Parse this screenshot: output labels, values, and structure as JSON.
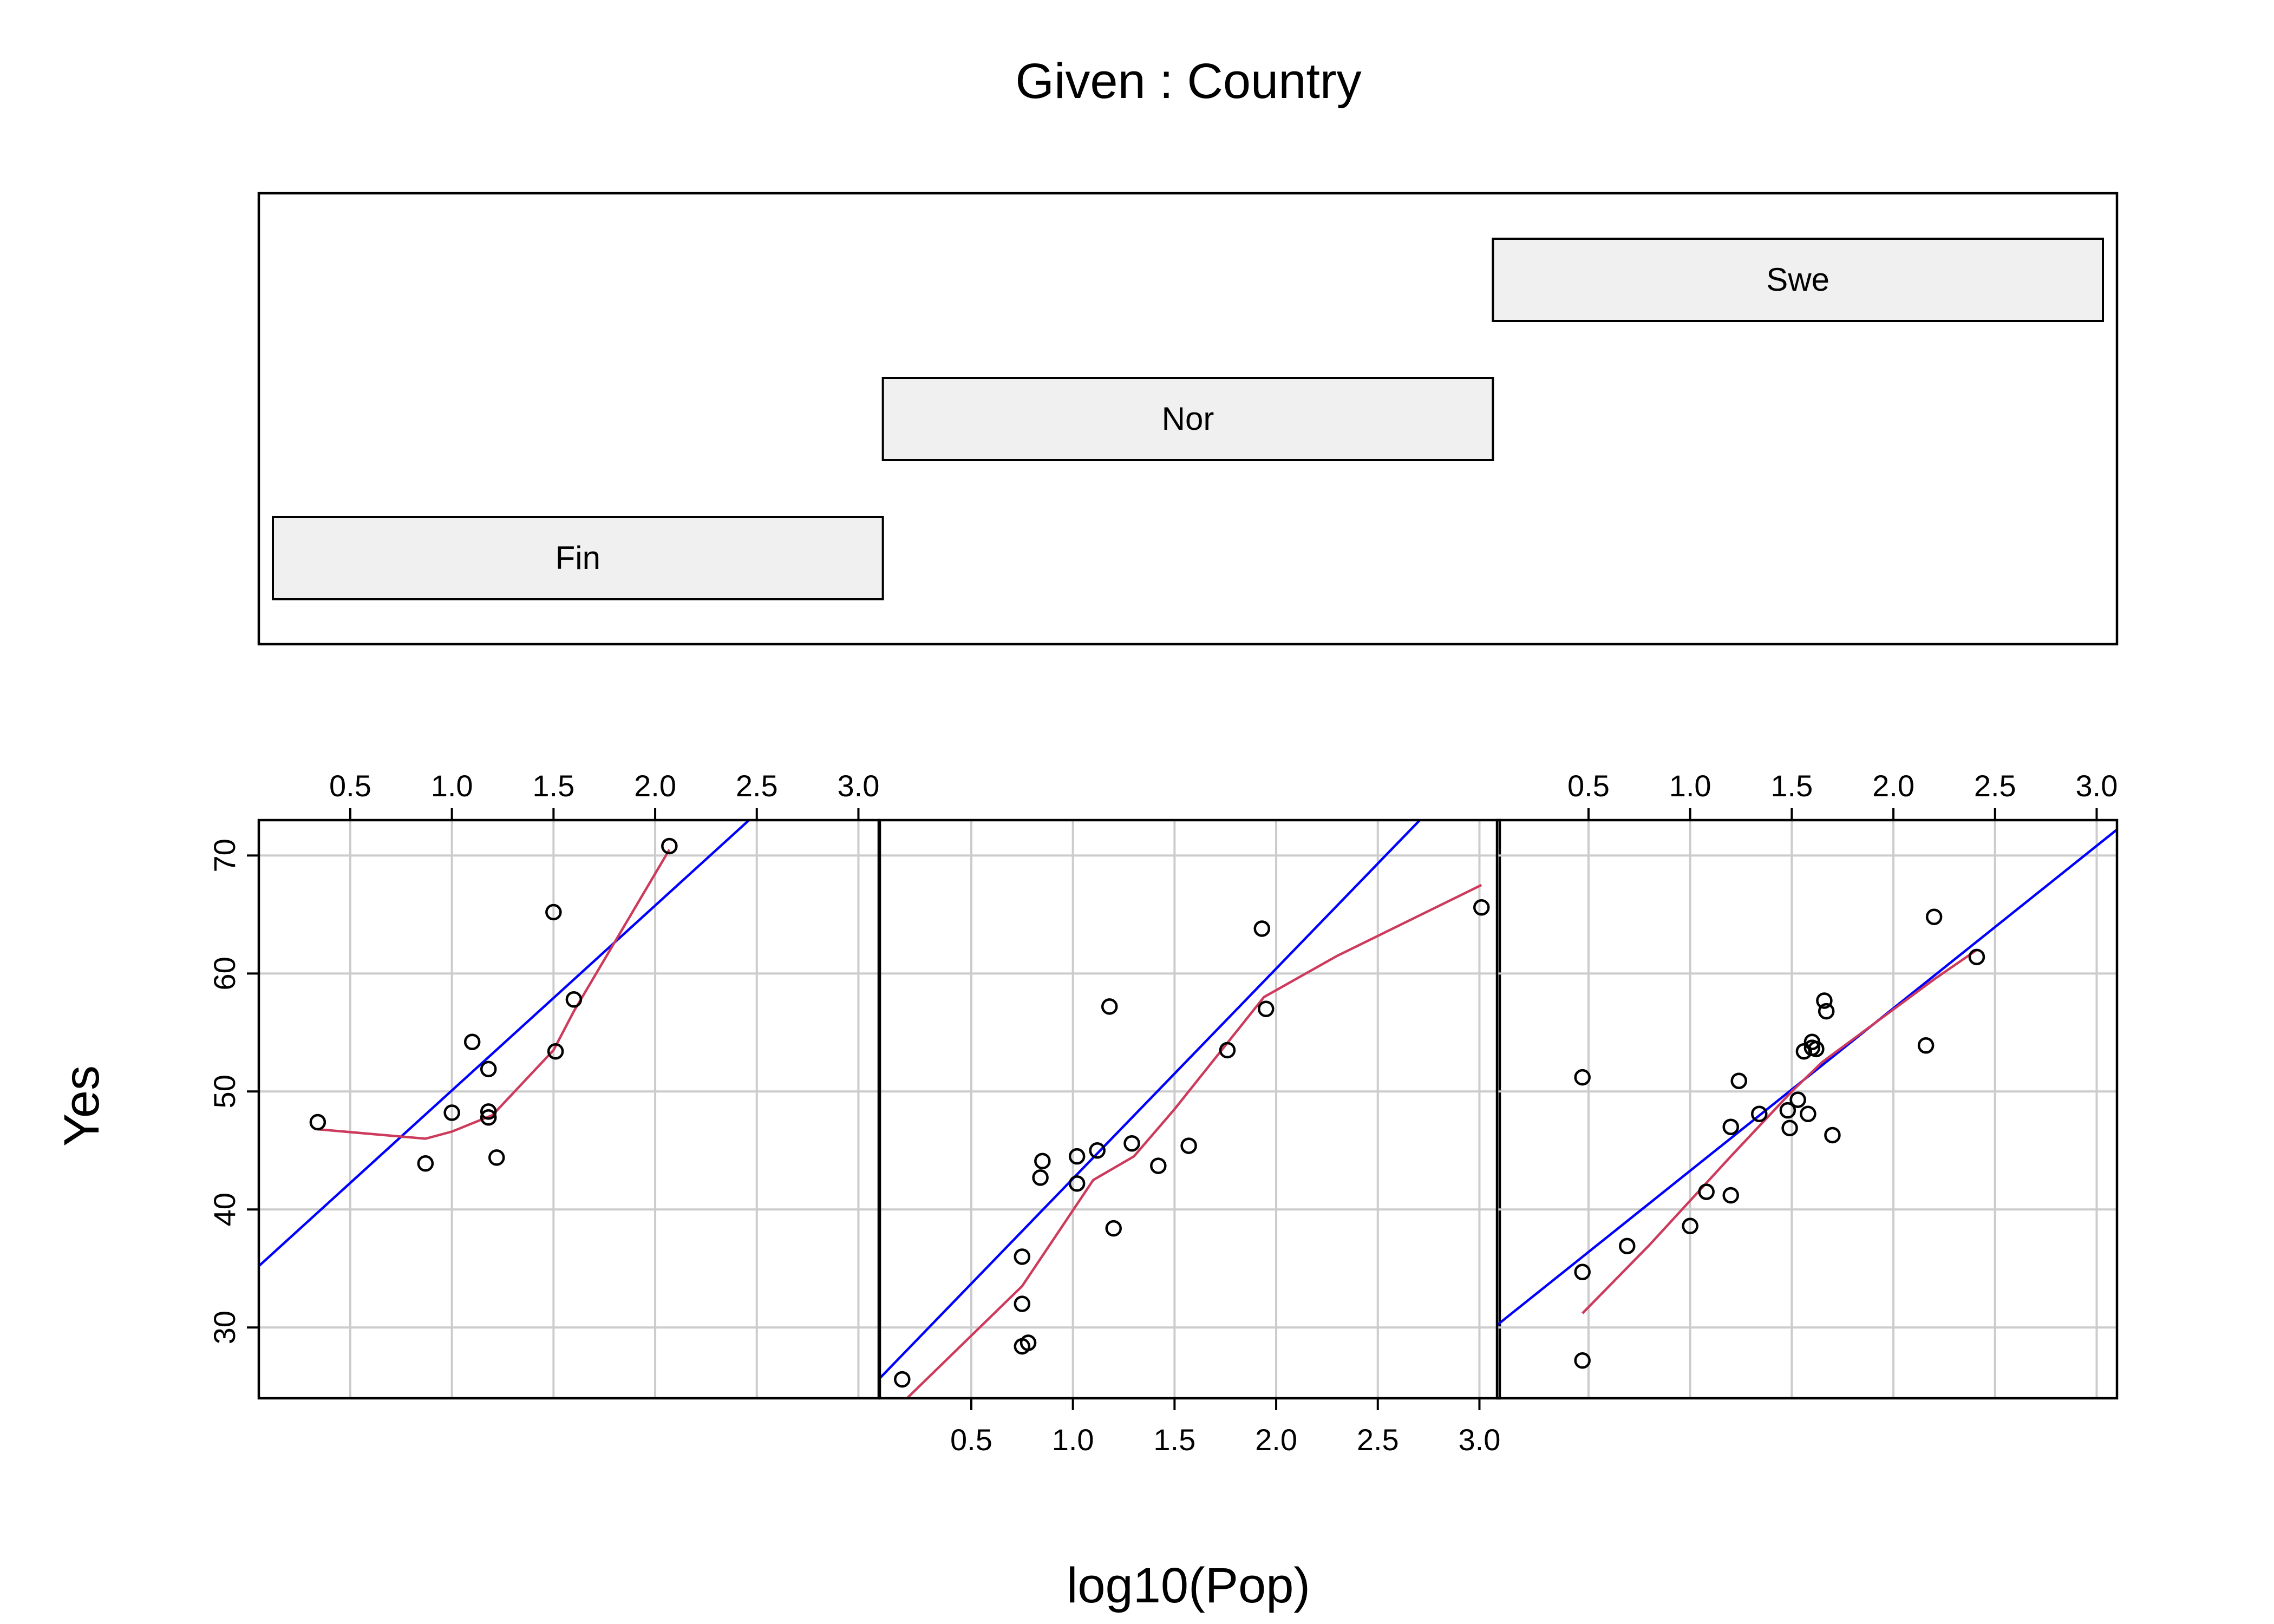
{
  "chart_data": {
    "type": "scatter",
    "layout": "coplot",
    "given_title": "Given : Country",
    "xlabel": "log10(Pop)",
    "ylabel": "Yes",
    "xlim": [
      0.05,
      3.1
    ],
    "ylim": [
      24,
      73
    ],
    "x_ticks": [
      "0.5",
      "1.0",
      "1.5",
      "2.0",
      "2.5",
      "3.0"
    ],
    "x_tick_values": [
      0.5,
      1.0,
      1.5,
      2.0,
      2.5,
      3.0
    ],
    "y_ticks": [
      "30",
      "40",
      "50",
      "60",
      "70"
    ],
    "y_tick_values": [
      30,
      40,
      50,
      60,
      70
    ],
    "grid": true,
    "given_levels": [
      {
        "label": "Fin",
        "level": 0,
        "range": [
          0,
          1
        ]
      },
      {
        "label": "Nor",
        "level": 1,
        "range": [
          1,
          2
        ]
      },
      {
        "label": "Swe",
        "level": 2,
        "range": [
          2,
          3
        ]
      }
    ],
    "colors": {
      "fit_line": "#0000ff",
      "smooth_line": "#cd3a5b",
      "points": "#000000",
      "grid": "#cccccc",
      "strip_fill": "#f0f0f0"
    },
    "panels": [
      {
        "label": "Fin",
        "points": [
          [
            0.34,
            47.4
          ],
          [
            0.87,
            43.9
          ],
          [
            1.0,
            48.2
          ],
          [
            1.1,
            54.2
          ],
          [
            1.18,
            51.9
          ],
          [
            1.18,
            47.8
          ],
          [
            1.18,
            48.3
          ],
          [
            1.22,
            44.4
          ],
          [
            1.5,
            65.2
          ],
          [
            1.51,
            53.4
          ],
          [
            1.6,
            57.8
          ],
          [
            2.07,
            70.8
          ]
        ],
        "fit_line": [
          [
            0.05,
            35.2
          ],
          [
            3.1,
            83.0
          ]
        ],
        "smooth_line": [
          [
            0.34,
            46.8
          ],
          [
            0.87,
            46.0
          ],
          [
            1.0,
            46.6
          ],
          [
            1.2,
            48.0
          ],
          [
            1.5,
            53.5
          ],
          [
            1.6,
            56.8
          ],
          [
            2.07,
            70.5
          ]
        ]
      },
      {
        "label": "Nor",
        "points": [
          [
            0.16,
            25.6
          ],
          [
            0.75,
            36.0
          ],
          [
            0.75,
            32.0
          ],
          [
            0.75,
            28.4
          ],
          [
            0.78,
            28.7
          ],
          [
            0.84,
            42.7
          ],
          [
            0.85,
            44.1
          ],
          [
            1.02,
            44.5
          ],
          [
            1.02,
            42.2
          ],
          [
            1.12,
            45.0
          ],
          [
            1.18,
            57.2
          ],
          [
            1.2,
            38.4
          ],
          [
            1.29,
            45.6
          ],
          [
            1.42,
            43.7
          ],
          [
            1.57,
            45.4
          ],
          [
            1.76,
            53.5
          ],
          [
            1.93,
            63.8
          ],
          [
            1.95,
            57.0
          ],
          [
            3.01,
            65.6
          ]
        ],
        "fit_line": [
          [
            0.05,
            25.7
          ],
          [
            3.1,
            80.0
          ]
        ],
        "smooth_line": [
          [
            0.16,
            23.6
          ],
          [
            0.75,
            33.5
          ],
          [
            1.1,
            42.5
          ],
          [
            1.3,
            44.5
          ],
          [
            1.5,
            48.5
          ],
          [
            1.94,
            58.0
          ],
          [
            2.3,
            61.5
          ],
          [
            3.01,
            67.5
          ]
        ]
      },
      {
        "label": "Swe",
        "points": [
          [
            0.47,
            51.2
          ],
          [
            0.47,
            34.7
          ],
          [
            0.47,
            27.2
          ],
          [
            0.69,
            36.9
          ],
          [
            1.0,
            38.6
          ],
          [
            1.08,
            41.5
          ],
          [
            1.2,
            47.0
          ],
          [
            1.2,
            41.2
          ],
          [
            1.24,
            50.9
          ],
          [
            1.34,
            48.1
          ],
          [
            1.48,
            48.4
          ],
          [
            1.49,
            46.9
          ],
          [
            1.53,
            49.3
          ],
          [
            1.56,
            53.4
          ],
          [
            1.58,
            48.1
          ],
          [
            1.6,
            54.2
          ],
          [
            1.6,
            53.7
          ],
          [
            1.62,
            53.6
          ],
          [
            1.66,
            57.7
          ],
          [
            1.67,
            56.8
          ],
          [
            1.7,
            46.3
          ],
          [
            2.16,
            53.9
          ],
          [
            2.2,
            64.8
          ],
          [
            2.41,
            61.4
          ]
        ],
        "fit_line": [
          [
            0.05,
            30.2
          ],
          [
            3.1,
            72.2
          ]
        ],
        "smooth_line": [
          [
            0.47,
            31.2
          ],
          [
            0.8,
            37.0
          ],
          [
            1.2,
            44.5
          ],
          [
            1.5,
            50.0
          ],
          [
            1.65,
            52.5
          ],
          [
            2.2,
            59.5
          ],
          [
            2.41,
            62.0
          ]
        ]
      }
    ]
  }
}
